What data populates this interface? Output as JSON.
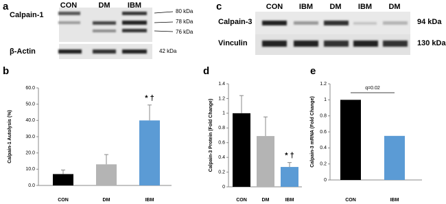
{
  "panel_labels": [
    "a",
    "b",
    "c",
    "d",
    "e"
  ],
  "blots": [
    {
      "columns": [
        "CON",
        "DM",
        "IBM"
      ],
      "rows": [
        {
          "name": "Calpain-1",
          "markers": [
            "80 kDa",
            "78 kDa",
            "76 kDa"
          ]
        },
        {
          "name": "β-Actin",
          "markers": [
            "42 kDa"
          ]
        }
      ]
    },
    {
      "columns": [
        "CON",
        "IBM",
        "DM",
        "IBM",
        "DM"
      ],
      "rows": [
        {
          "name": "Calpain-3",
          "markers": [
            "94 kDa"
          ]
        },
        {
          "name": "Vinculin",
          "markers": [
            "130 kDa"
          ]
        }
      ]
    }
  ],
  "chart_data": [
    {
      "type": "bar",
      "ylabel": "Calpain-1 Autolysis (%)",
      "categories": [
        "CON",
        "DM",
        "IBM"
      ],
      "values": [
        7,
        13,
        40
      ],
      "errors": [
        2.5,
        6,
        9.5
      ],
      "colors": [
        "#000000",
        "#b4b4b4",
        "#5b9bd5"
      ],
      "ylim": [
        0,
        60
      ],
      "yticks": [
        {
          "value": 0,
          "label": "0.0"
        },
        {
          "value": 10,
          "label": "10.0"
        },
        {
          "value": 20,
          "label": "20.0"
        },
        {
          "value": 30,
          "label": "30.0"
        },
        {
          "value": 40,
          "label": "40.0"
        },
        {
          "value": 50,
          "label": "50.0"
        },
        {
          "value": 60,
          "label": "60.0"
        }
      ],
      "annotations": [
        "*  †"
      ]
    },
    {
      "type": "bar",
      "ylabel": "Calpain-3 Protein (Fold Change)",
      "categories": [
        "CON",
        "DM",
        "IBM"
      ],
      "values": [
        1.0,
        0.69,
        0.27
      ],
      "errors": [
        0.24,
        0.26,
        0.06
      ],
      "colors": [
        "#000000",
        "#b4b4b4",
        "#5b9bd5"
      ],
      "ylim": [
        0,
        1.4
      ],
      "yticks": [
        0,
        0.2,
        0.4,
        0.6,
        0.8,
        1,
        1.2,
        1.4
      ],
      "annotations": [
        "*  †"
      ]
    },
    {
      "type": "bar",
      "ylabel": "Calpain-3 mRNA (Fold Change)",
      "categories": [
        "CON",
        "IBM"
      ],
      "values": [
        1.0,
        0.55
      ],
      "colors": [
        "#000000",
        "#5b9bd5"
      ],
      "ylim": [
        0,
        1.2
      ],
      "yticks": [
        0,
        0.2,
        0.4,
        0.6,
        0.8,
        1,
        1.2
      ],
      "annotations": [
        "q=0.02"
      ]
    }
  ]
}
